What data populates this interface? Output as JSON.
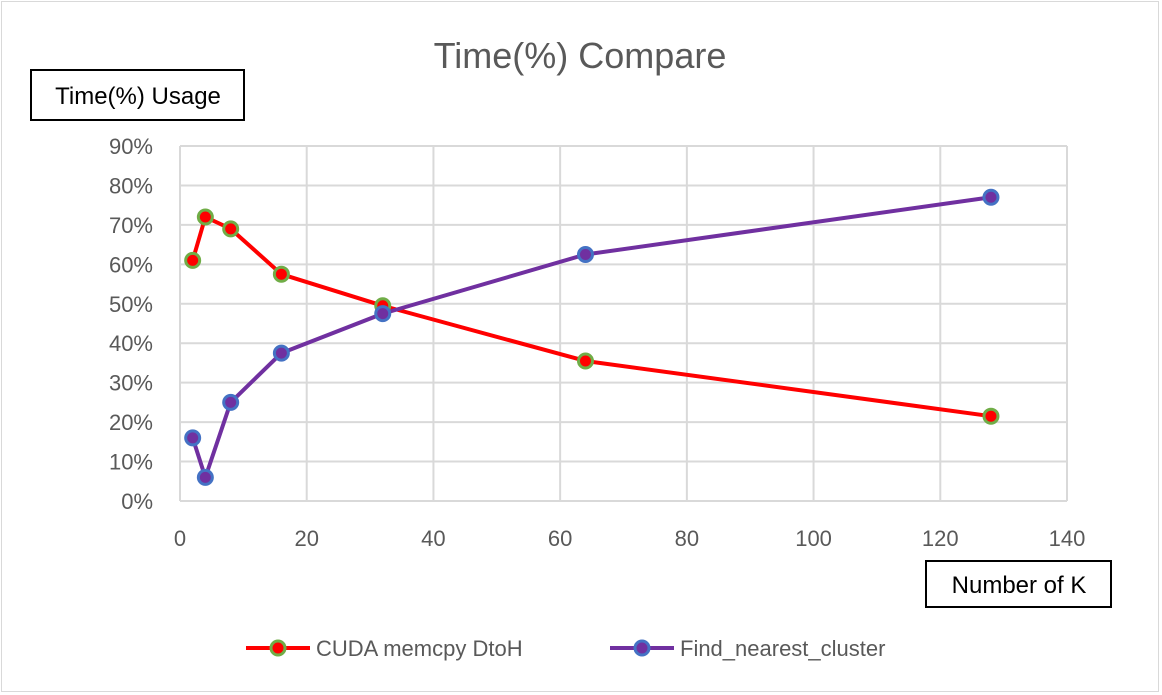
{
  "chart_data": {
    "type": "line",
    "title": "Time(%) Compare",
    "ylabel": "Time(%) Usage",
    "xlabel": "Number of K",
    "xlim": [
      0,
      140
    ],
    "ylim": [
      0,
      0.9
    ],
    "x_ticks": [
      "0",
      "20",
      "40",
      "60",
      "80",
      "100",
      "120",
      "140"
    ],
    "y_ticks": [
      "0%",
      "10%",
      "20%",
      "30%",
      "40%",
      "50%",
      "60%",
      "70%",
      "80%",
      "90%"
    ],
    "grid": true,
    "legend_position": "bottom",
    "series": [
      {
        "name": "CUDA memcpy DtoH",
        "color": "#ff0000",
        "marker_color": "#70ad47",
        "x": [
          2,
          4,
          8,
          16,
          32,
          64,
          128
        ],
        "y": [
          0.61,
          0.72,
          0.69,
          0.575,
          0.495,
          0.355,
          0.215
        ]
      },
      {
        "name": "Find_nearest_cluster",
        "color": "#7030a0",
        "marker_color": "#4472c4",
        "x": [
          2,
          4,
          8,
          16,
          32,
          64,
          128
        ],
        "y": [
          0.16,
          0.06,
          0.25,
          0.375,
          0.475,
          0.625,
          0.77
        ]
      }
    ]
  }
}
